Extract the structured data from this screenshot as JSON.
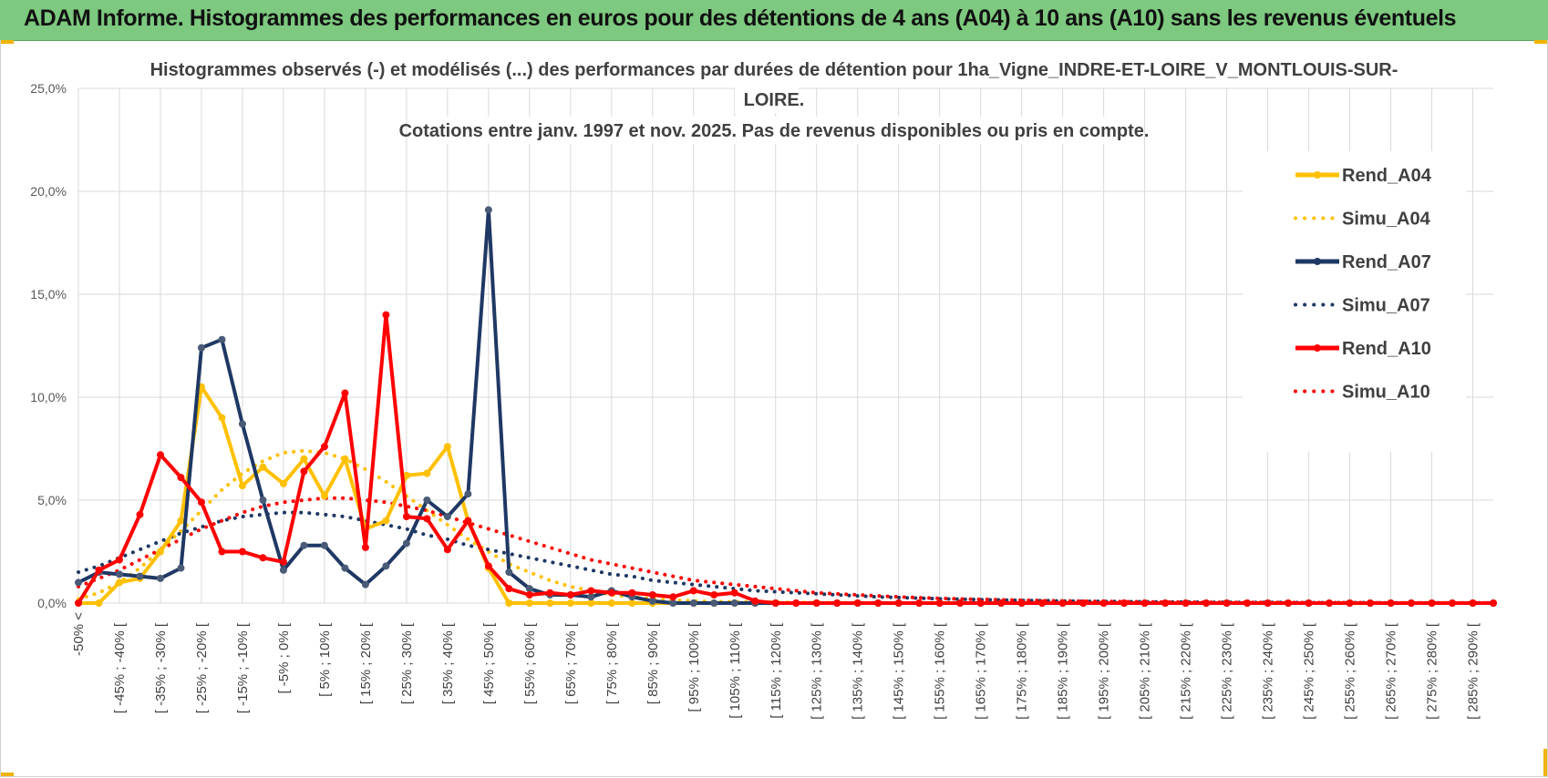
{
  "banner": {
    "title": "ADAM Informe. Histogrammes des performances en euros pour des détentions de 4 ans (A04) à 10 ans (A10) sans les revenus éventuels"
  },
  "chart_data": {
    "type": "line",
    "title_lines": [
      "Histogrammes observés (-) et modélisés (...) des performances par durées de détention pour 1ha_Vigne_INDRE-ET-LOIRE_V_MONTLOUIS-SUR-",
      "LOIRE.",
      "Cotations entre janv. 1997 et nov. 2025. Pas de revenus disponibles ou pris en compte."
    ],
    "ylim": [
      0,
      25
    ],
    "y_ticks": [
      "0,0%",
      "5,0%",
      "10,0%",
      "15,0%",
      "20,0%",
      "25,0%"
    ],
    "grid": true,
    "legend_position": "right",
    "x_tick_labels": [
      "-50% <",
      "[ -45% ; -40% [",
      "[ -35% ; -30% [",
      "[ -25% ; -20% [",
      "[ -15% ; -10% [",
      "[ -5% ; 0% [",
      "[ 5% ; 10% [",
      "[ 15% ; 20% [",
      "[ 25% ; 30% [",
      "[ 35% ; 40% [",
      "[ 45% ; 50% [",
      "[ 55% ; 60% [",
      "[ 65% ; 70% [",
      "[ 75% ; 80% [",
      "[ 85% ; 90% [",
      "[ 95% ; 100% [",
      "[ 105% ; 110% [",
      "[ 115% ; 120% [",
      "[ 125% ; 130% [",
      "[ 135% ; 140% [",
      "[ 145% ; 150% [",
      "[ 155% ; 160% [",
      "[ 165% ; 170% [",
      "[ 175% ; 180% [",
      "[ 185% ; 190% [",
      "[ 195% ; 200% [",
      "[ 205% ; 210% [",
      "[ 215% ; 220% [",
      "[ 225% ; 230% [",
      "[ 235% ; 240% [",
      "[ 245% ; 250% [",
      "[ 255% ; 260% [",
      "[ 265% ; 270% [",
      "[ 275% ; 280% [",
      "[ 285% ; 290% ["
    ],
    "series": [
      {
        "name": "Rend_A04",
        "style": "solid",
        "color": "#ffc000",
        "values": [
          0,
          0,
          1.0,
          1.2,
          2.5,
          4.0,
          10.5,
          9.0,
          5.7,
          6.6,
          5.8,
          7.0,
          5.2,
          7.0,
          3.6,
          4.0,
          6.2,
          6.3,
          7.6,
          4.0,
          1.7,
          0,
          0,
          0,
          0,
          0,
          0,
          0,
          0,
          0,
          0,
          0,
          0,
          0,
          0,
          0,
          0,
          0,
          0,
          0,
          0,
          0,
          0,
          0,
          0,
          0,
          0,
          0,
          0,
          0,
          0,
          0,
          0,
          0,
          0,
          0,
          0,
          0,
          0,
          0,
          0,
          0,
          0,
          0,
          0,
          0,
          0,
          0,
          0,
          0
        ]
      },
      {
        "name": "Simu_A04",
        "style": "dotted",
        "color": "#ffc000",
        "values": [
          0.2,
          0.5,
          1.0,
          1.7,
          2.6,
          3.5,
          4.5,
          5.5,
          6.3,
          6.9,
          7.3,
          7.4,
          7.3,
          7.0,
          6.5,
          5.9,
          5.2,
          4.5,
          3.8,
          3.1,
          2.5,
          1.9,
          1.5,
          1.1,
          0.8,
          0.6,
          0.4,
          0.3,
          0.2,
          0.15,
          0.1,
          0.08,
          0.06,
          0.05,
          0.04,
          0.03,
          0.02,
          0.02,
          0.01,
          0.01,
          0,
          0,
          0,
          0,
          0,
          0,
          0,
          0,
          0,
          0,
          0,
          0,
          0,
          0,
          0,
          0,
          0,
          0,
          0,
          0,
          0,
          0,
          0,
          0,
          0,
          0,
          0,
          0,
          0,
          0
        ]
      },
      {
        "name": "Rend_A07",
        "style": "solid",
        "color": "#1f3864",
        "values": [
          1.0,
          1.5,
          1.4,
          1.3,
          1.2,
          1.7,
          12.4,
          12.8,
          8.7,
          5.0,
          1.6,
          2.8,
          2.8,
          1.7,
          0.9,
          1.8,
          2.9,
          5.0,
          4.2,
          5.3,
          19.1,
          1.5,
          0.7,
          0.4,
          0.4,
          0.3,
          0.6,
          0.3,
          0.1,
          0,
          0,
          0,
          0,
          0,
          0,
          0,
          0,
          0,
          0,
          0,
          0,
          0,
          0,
          0,
          0,
          0,
          0,
          0,
          0,
          0,
          0,
          0,
          0,
          0,
          0,
          0,
          0,
          0,
          0,
          0,
          0,
          0,
          0,
          0,
          0,
          0,
          0,
          0,
          0,
          0
        ]
      },
      {
        "name": "Simu_A07",
        "style": "dotted",
        "color": "#1f3864",
        "values": [
          1.5,
          1.8,
          2.2,
          2.6,
          3.0,
          3.4,
          3.7,
          4.0,
          4.2,
          4.3,
          4.4,
          4.4,
          4.3,
          4.2,
          4.0,
          3.8,
          3.6,
          3.3,
          3.1,
          2.8,
          2.6,
          2.4,
          2.2,
          2.0,
          1.8,
          1.6,
          1.4,
          1.3,
          1.1,
          1.0,
          0.9,
          0.8,
          0.7,
          0.6,
          0.55,
          0.5,
          0.45,
          0.4,
          0.35,
          0.3,
          0.27,
          0.24,
          0.21,
          0.19,
          0.17,
          0.15,
          0.13,
          0.12,
          0.1,
          0.09,
          0.08,
          0.07,
          0.06,
          0.05,
          0.05,
          0.04,
          0.04,
          0.03,
          0.03,
          0.03,
          0.02,
          0.02,
          0.02,
          0.02,
          0.01,
          0.01,
          0.01,
          0.01,
          0.01,
          0.01
        ]
      },
      {
        "name": "Rend_A10",
        "style": "solid",
        "color": "#ff0000",
        "values": [
          0,
          1.6,
          2.1,
          4.3,
          7.2,
          6.1,
          4.9,
          2.5,
          2.5,
          2.2,
          2.0,
          6.4,
          7.6,
          10.2,
          2.7,
          14.0,
          4.2,
          4.1,
          2.6,
          4.0,
          1.8,
          0.7,
          0.4,
          0.5,
          0.4,
          0.6,
          0.5,
          0.5,
          0.4,
          0.3,
          0.6,
          0.4,
          0.5,
          0.1,
          0,
          0,
          0,
          0,
          0,
          0,
          0,
          0,
          0,
          0,
          0,
          0,
          0,
          0,
          0,
          0,
          0,
          0,
          0,
          0,
          0,
          0,
          0,
          0,
          0,
          0,
          0,
          0,
          0,
          0,
          0,
          0,
          0,
          0,
          0,
          0
        ]
      },
      {
        "name": "Simu_A10",
        "style": "dotted",
        "color": "#ff0000",
        "values": [
          0.8,
          1.2,
          1.6,
          2.1,
          2.6,
          3.1,
          3.6,
          4.0,
          4.4,
          4.7,
          4.9,
          5.0,
          5.1,
          5.1,
          5.0,
          4.9,
          4.7,
          4.5,
          4.2,
          3.9,
          3.6,
          3.3,
          3.0,
          2.7,
          2.4,
          2.1,
          1.9,
          1.7,
          1.5,
          1.3,
          1.1,
          1.0,
          0.9,
          0.8,
          0.7,
          0.6,
          0.5,
          0.45,
          0.4,
          0.35,
          0.3,
          0.26,
          0.23,
          0.2,
          0.18,
          0.16,
          0.14,
          0.12,
          0.1,
          0.09,
          0.08,
          0.07,
          0.06,
          0.05,
          0.05,
          0.04,
          0.04,
          0.03,
          0.03,
          0.03,
          0.02,
          0.02,
          0.02,
          0.02,
          0.01,
          0.01,
          0.01,
          0.01,
          0.01,
          0.01
        ]
      }
    ]
  }
}
